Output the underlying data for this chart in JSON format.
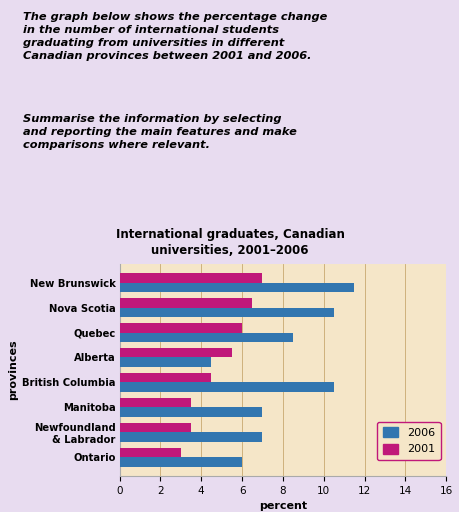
{
  "title_line1": "International graduates, Canadian",
  "title_line2": "universities, 2001–2006",
  "xlabel": "percent",
  "ylabel": "provinces",
  "provinces": [
    "New Brunswick",
    "Nova Scotia",
    "Quebec",
    "Alberta",
    "British Columbia",
    "Manitoba",
    "Newfoundland\n& Labrador",
    "Ontario"
  ],
  "values_2006": [
    11.5,
    10.5,
    8.5,
    4.5,
    10.5,
    7.0,
    7.0,
    6.0
  ],
  "values_2001": [
    7.0,
    6.5,
    6.0,
    5.5,
    4.5,
    3.5,
    3.5,
    3.0
  ],
  "color_2006": "#3276B0",
  "color_2001": "#C0187A",
  "xlim": [
    0,
    16
  ],
  "xticks": [
    0,
    2,
    4,
    6,
    8,
    10,
    12,
    14,
    16
  ],
  "bar_height": 0.38,
  "chart_bg": "#F5E6C8",
  "top_bg": "#FFFFFF",
  "outer_bg": "#E8DCF0",
  "text_block_1": "The graph below shows the percentage change\nin the number of international students\ngraduating from universities in different\nCanadian provinces between 2001 and 2006.",
  "text_block_2": "Summarise the information by selecting\nand reporting the main features and make\ncomparisons where relevant."
}
